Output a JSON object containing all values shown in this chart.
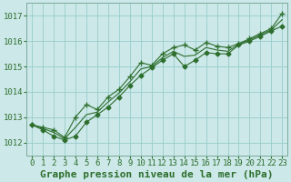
{
  "background_color": "#cce8e8",
  "plot_bg_color": "#cce8e8",
  "grid_color": "#99cccc",
  "line_color": "#2d6e2d",
  "title": "Graphe pression niveau de la mer (hPa)",
  "ylim": [
    1011.5,
    1017.5
  ],
  "xlim": [
    -0.5,
    23.5
  ],
  "yticks": [
    1012,
    1013,
    1014,
    1015,
    1016,
    1017
  ],
  "xticks": [
    0,
    1,
    2,
    3,
    4,
    5,
    6,
    7,
    8,
    9,
    10,
    11,
    12,
    13,
    14,
    15,
    16,
    17,
    18,
    19,
    20,
    21,
    22,
    23
  ],
  "series1_x": [
    0,
    1,
    2,
    3,
    4,
    5,
    6,
    7,
    8,
    9,
    10,
    11,
    12,
    13,
    14,
    15,
    16,
    17,
    18,
    19,
    20,
    21,
    22,
    23
  ],
  "series1_y": [
    1012.7,
    1012.6,
    1012.5,
    1012.2,
    1013.0,
    1013.5,
    1013.3,
    1013.8,
    1014.1,
    1014.6,
    1015.15,
    1015.05,
    1015.5,
    1015.75,
    1015.85,
    1015.65,
    1015.95,
    1015.8,
    1015.75,
    1015.9,
    1016.1,
    1016.3,
    1016.5,
    1017.1
  ],
  "series2_x": [
    0,
    1,
    2,
    3,
    4,
    5,
    6,
    7,
    8,
    9,
    10,
    11,
    12,
    13,
    14,
    15,
    16,
    17,
    18,
    19,
    20,
    21,
    22,
    23
  ],
  "series2_y": [
    1012.7,
    1012.5,
    1012.25,
    1012.1,
    1012.25,
    1012.8,
    1013.1,
    1013.4,
    1013.8,
    1014.25,
    1014.65,
    1014.95,
    1015.25,
    1015.5,
    1015.0,
    1015.25,
    1015.55,
    1015.5,
    1015.5,
    1015.85,
    1016.0,
    1016.2,
    1016.4,
    1016.6
  ],
  "series3_x": [
    0,
    1,
    2,
    3,
    4,
    5,
    6,
    7,
    8,
    9,
    10,
    11,
    12,
    13,
    14,
    15,
    16,
    17,
    18,
    19,
    20,
    21,
    22,
    23
  ],
  "series3_y": [
    1012.7,
    1012.55,
    1012.4,
    1012.15,
    1012.6,
    1013.1,
    1013.2,
    1013.6,
    1013.95,
    1014.4,
    1014.9,
    1015.0,
    1015.35,
    1015.6,
    1015.4,
    1015.45,
    1015.75,
    1015.65,
    1015.6,
    1015.88,
    1016.05,
    1016.25,
    1016.45,
    1016.85
  ],
  "title_fontsize": 8,
  "tick_fontsize": 6.5
}
